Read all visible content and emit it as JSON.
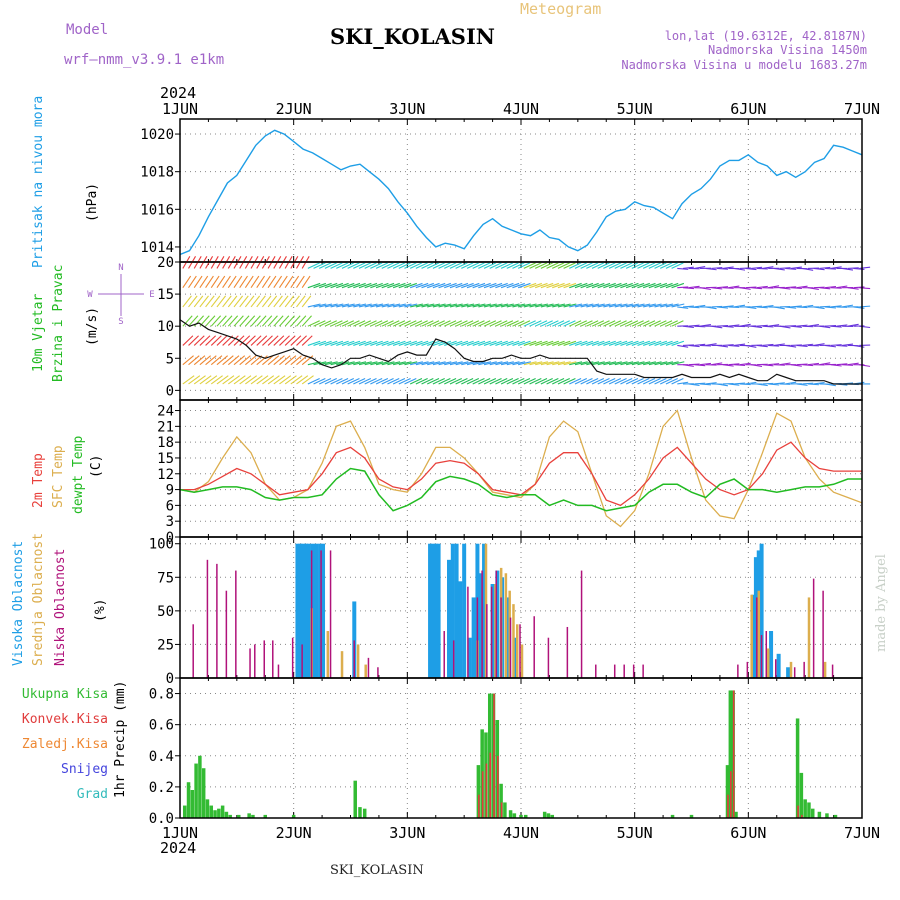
{
  "header": {
    "model_label": "Model",
    "model_name": "wrf–nmm_v3.9.1 e1km",
    "station": "SKI_KOLASIN",
    "product": "Meteogram",
    "lonlat": "lon,lat (19.6312E, 42.8187N)",
    "elevation": "Nadmorska Visina 1450m",
    "elevation_model": "Nadmorska Visina u modelu 1683.27m"
  },
  "footer": {
    "station": "SKI_KOLASIN"
  },
  "watermark": "made by Angel",
  "colors": {
    "pressure": "#1e9ee6",
    "temp2m": "#e8413c",
    "sfc": "#dcae4e",
    "dewpt": "#22bb22",
    "high_cloud": "#1e9ee6",
    "mid_cloud": "#dcae4e",
    "low_cloud": "#b0127a",
    "total_precip": "#33bb33",
    "conv_precip": "#e03c3c",
    "frozen_precip": "#ee8833",
    "snow": "#4444dd",
    "hail": "#33bbbb"
  },
  "chart_data": [
    {
      "id": "pressure",
      "type": "line",
      "x_axis": {
        "year": "2024",
        "ticks": [
          "1JUN",
          "2JUN",
          "3JUN",
          "4JUN",
          "5JUN",
          "6JUN",
          "7JUN"
        ],
        "range_hours": [
          0,
          144
        ]
      },
      "ylabel": [
        "Pritisak na nivou mora",
        "(hPa)"
      ],
      "ylim": [
        1013.2,
        1020.8
      ],
      "yticks": [
        1014,
        1016,
        1018,
        1020
      ],
      "series": [
        {
          "name": "Pritisak na nivou mora",
          "x": [
            0,
            2,
            4,
            6,
            8,
            10,
            12,
            14,
            16,
            18,
            20,
            22,
            24,
            26,
            28,
            30,
            32,
            34,
            36,
            38,
            40,
            42,
            44,
            46,
            48,
            50,
            52,
            54,
            56,
            58,
            60,
            62,
            64,
            66,
            68,
            70,
            72,
            74,
            76,
            78,
            80,
            82,
            84,
            86,
            88,
            90,
            92,
            94,
            96,
            98,
            100,
            102,
            104,
            106,
            108,
            110,
            112,
            114,
            116,
            118,
            120,
            122,
            124,
            126,
            128,
            130,
            132,
            134,
            136,
            138,
            140,
            142,
            144
          ],
          "y": [
            1013.6,
            1013.8,
            1014.6,
            1015.6,
            1016.5,
            1017.4,
            1017.8,
            1018.6,
            1019.4,
            1019.9,
            1020.2,
            1020.0,
            1019.6,
            1019.2,
            1019.0,
            1018.7,
            1018.4,
            1018.1,
            1018.3,
            1018.4,
            1018.0,
            1017.6,
            1017.1,
            1016.4,
            1015.8,
            1015.1,
            1014.5,
            1014.0,
            1014.2,
            1014.1,
            1013.9,
            1014.6,
            1015.2,
            1015.5,
            1015.1,
            1014.9,
            1014.7,
            1014.6,
            1014.9,
            1014.5,
            1014.4,
            1014.0,
            1013.8,
            1014.1,
            1014.8,
            1015.6,
            1015.9,
            1016.0,
            1016.4,
            1016.2,
            1016.1,
            1015.8,
            1015.5,
            1016.3,
            1016.8,
            1017.1,
            1017.6,
            1018.3,
            1018.6,
            1018.6,
            1018.9,
            1018.5,
            1018.3,
            1017.8,
            1018.0,
            1017.7,
            1018.0,
            1018.5,
            1018.7,
            1019.4,
            1019.3,
            1019.1,
            1018.9
          ]
        }
      ]
    },
    {
      "id": "wind",
      "type": "line",
      "ylabel": [
        "10m Vjetar",
        "Brzina i Pravac",
        "(m/s)"
      ],
      "compass_label": [
        "N",
        "W",
        "E",
        "S"
      ],
      "ylim": [
        -1.5,
        20
      ],
      "yticks": [
        0,
        5,
        10,
        15,
        20
      ],
      "series": [
        {
          "name": "Brzina",
          "x": [
            0,
            2,
            4,
            6,
            8,
            10,
            12,
            14,
            16,
            18,
            20,
            22,
            24,
            26,
            28,
            30,
            32,
            34,
            36,
            38,
            40,
            42,
            44,
            46,
            48,
            50,
            52,
            54,
            56,
            58,
            60,
            62,
            64,
            66,
            68,
            70,
            72,
            74,
            76,
            78,
            80,
            82,
            84,
            86,
            88,
            90,
            92,
            94,
            96,
            98,
            100,
            102,
            104,
            106,
            108,
            110,
            112,
            114,
            116,
            118,
            120,
            122,
            124,
            126,
            128,
            130,
            132,
            134,
            136,
            138,
            140,
            142,
            144
          ],
          "y": [
            11,
            10,
            10.5,
            9.5,
            9,
            8.5,
            8,
            7,
            5.5,
            5,
            5.5,
            6,
            6.5,
            5.5,
            5,
            4,
            3.5,
            4,
            5,
            5,
            5.5,
            5,
            4.5,
            5.5,
            6,
            5.5,
            5.5,
            8,
            7.5,
            6.5,
            5,
            4.5,
            4.5,
            5,
            5,
            5.5,
            5,
            5,
            5.5,
            5,
            5,
            5,
            5,
            5,
            3,
            2.5,
            2.5,
            2.5,
            2.5,
            2,
            2,
            2,
            2,
            2.5,
            2,
            2,
            2,
            2.5,
            2,
            2.5,
            2,
            1.5,
            1.5,
            2.5,
            2,
            1.5,
            1.5,
            1.5,
            1.5,
            1,
            1,
            1,
            1
          ]
        }
      ]
    },
    {
      "id": "temperature",
      "type": "line",
      "ylabel": [
        "2m Temp",
        "SFC Temp",
        "dewpt Temp",
        "(C)"
      ],
      "ylim": [
        0,
        26
      ],
      "yticks": [
        0,
        3,
        6,
        9,
        12,
        15,
        18,
        21,
        24
      ],
      "series": [
        {
          "name": "2m Temp",
          "x": [
            0,
            3,
            6,
            9,
            12,
            15,
            18,
            21,
            24,
            27,
            30,
            33,
            36,
            39,
            42,
            45,
            48,
            51,
            54,
            57,
            60,
            63,
            66,
            69,
            72,
            75,
            78,
            81,
            84,
            87,
            90,
            93,
            96,
            99,
            102,
            105,
            108,
            111,
            114,
            117,
            120,
            123,
            126,
            129,
            132,
            135,
            138,
            141,
            144
          ],
          "y": [
            9,
            9,
            10,
            11.5,
            13,
            12,
            10,
            8,
            8.5,
            9,
            12,
            16,
            17,
            15,
            11,
            9.5,
            9,
            11,
            14,
            14.5,
            14,
            12,
            9,
            8.5,
            8,
            10,
            14,
            16,
            16,
            12,
            7,
            6,
            8,
            11,
            15,
            17,
            14,
            11,
            9,
            8,
            9,
            12,
            16.5,
            18,
            15,
            13,
            12.5,
            12.5,
            12.5
          ]
        },
        {
          "name": "SFC Temp",
          "x": [
            0,
            3,
            6,
            9,
            12,
            15,
            18,
            21,
            24,
            27,
            30,
            33,
            36,
            39,
            42,
            45,
            48,
            51,
            54,
            57,
            60,
            63,
            66,
            69,
            72,
            75,
            78,
            81,
            84,
            87,
            90,
            93,
            96,
            99,
            102,
            105,
            108,
            111,
            114,
            117,
            120,
            123,
            126,
            129,
            132,
            135,
            138,
            141,
            144
          ],
          "y": [
            9,
            8.5,
            10.5,
            15,
            19,
            16,
            10,
            7,
            7.5,
            9,
            14,
            21,
            22,
            17,
            10,
            9,
            8.5,
            12,
            17,
            17,
            15,
            12,
            8.5,
            8,
            7.5,
            10,
            19,
            22,
            20,
            12,
            4,
            2,
            5,
            12,
            21,
            24,
            15,
            7,
            4,
            3.5,
            9,
            16,
            23.5,
            22,
            15,
            11,
            8.5,
            7.5,
            6.5
          ]
        },
        {
          "name": "dewpt Temp",
          "x": [
            0,
            3,
            6,
            9,
            12,
            15,
            18,
            21,
            24,
            27,
            30,
            33,
            36,
            39,
            42,
            45,
            48,
            51,
            54,
            57,
            60,
            63,
            66,
            69,
            72,
            75,
            78,
            81,
            84,
            87,
            90,
            93,
            96,
            99,
            102,
            105,
            108,
            111,
            114,
            117,
            120,
            123,
            126,
            129,
            132,
            135,
            138,
            141,
            144
          ],
          "y": [
            9,
            8.5,
            9,
            9.5,
            9.5,
            9,
            7.5,
            7,
            7.5,
            7.5,
            8,
            11,
            13,
            12.5,
            8,
            5,
            6,
            7.5,
            10.5,
            11.5,
            11,
            10,
            8,
            7.5,
            8,
            8,
            6,
            7,
            6,
            6,
            5,
            5.5,
            6,
            8.5,
            10,
            10,
            8.5,
            7.5,
            10,
            11,
            9,
            9,
            8.5,
            9,
            9.5,
            9.5,
            10,
            11,
            11
          ]
        }
      ]
    },
    {
      "id": "clouds",
      "type": "bar",
      "ylabel": [
        "Visoka Oblacnost",
        "Srednja Oblacnost",
        "Niska Oblacnost",
        "(%)"
      ],
      "ylim": [
        0,
        105
      ],
      "yticks": [
        0,
        25,
        50,
        75,
        100
      ],
      "series": [
        {
          "name": "Visoka Oblacnost",
          "x": [
            24.8,
            25.4,
            26,
            26.6,
            27.2,
            28,
            28.8,
            29.6,
            30.2,
            36.8,
            52.8,
            53.4,
            54,
            54.6,
            56.8,
            57.6,
            58.4,
            59.2,
            60,
            61.2,
            62,
            62.8,
            63.4,
            64.2,
            66,
            67,
            68,
            69,
            70.8,
            121,
            121.6,
            122.2,
            122.8,
            124.8,
            126.4,
            128.4
          ],
          "y": [
            100,
            100,
            100,
            100,
            100,
            100,
            100,
            100,
            100,
            57,
            100,
            100,
            100,
            100,
            88,
            100,
            100,
            72,
            100,
            30,
            60,
            100,
            78,
            100,
            70,
            80,
            75,
            60,
            30,
            62,
            90,
            95,
            100,
            35,
            18,
            8
          ]
        },
        {
          "name": "Srednja Oblacnost",
          "x": [
            27.6,
            31,
            34,
            37.4,
            39,
            62.6,
            64.4,
            66.4,
            67.6,
            68.6,
            69.4,
            70.2,
            71,
            72,
            120.5,
            122,
            124,
            128.8,
            132.6,
            136
          ],
          "y": [
            52,
            35,
            20,
            25,
            10,
            28,
            100,
            70,
            82,
            78,
            65,
            55,
            40,
            25,
            62,
            65,
            22,
            12,
            60,
            12
          ]
        },
        {
          "name": "Niska Oblacnost",
          "x": [
            3,
            6,
            8,
            10,
            12,
            15,
            16,
            18,
            19.8,
            21,
            24,
            26,
            28,
            30,
            32,
            37,
            40,
            42,
            56,
            58,
            61,
            63,
            64,
            65,
            66,
            67,
            68,
            70,
            72,
            75,
            78,
            82,
            85,
            88,
            92,
            94,
            96,
            98,
            118,
            120,
            122,
            123,
            124,
            126,
            130,
            132,
            134,
            136,
            138
          ],
          "y": [
            40,
            88,
            85,
            65,
            80,
            22,
            25,
            28,
            28,
            10,
            30,
            25,
            95,
            95,
            95,
            28,
            15,
            8,
            35,
            28,
            68,
            60,
            80,
            55,
            68,
            80,
            60,
            45,
            40,
            46,
            30,
            38,
            80,
            10,
            10,
            10,
            10,
            10,
            10,
            12,
            60,
            32,
            35,
            14,
            8,
            12,
            74,
            65,
            10
          ]
        }
      ]
    },
    {
      "id": "precip",
      "type": "bar",
      "x_axis": {
        "year": "2024",
        "ticks": [
          "1JUN",
          "2JUN",
          "3JUN",
          "4JUN",
          "5JUN",
          "6JUN",
          "7JUN"
        ],
        "range_hours": [
          0,
          144
        ]
      },
      "ylabel": [
        "1hr Precip (mm)"
      ],
      "legend": [
        "Ukupna Kisa",
        "Konvek.Kisa",
        "Zaledj.Kisa",
        "Snijeg",
        "Grad"
      ],
      "ylim": [
        0,
        0.9
      ],
      "yticks": [
        0,
        0.2,
        0.4,
        0.6,
        0.8
      ],
      "series": [
        {
          "name": "Ukupna Kisa",
          "x": [
            1,
            1.8,
            2.6,
            3.4,
            4.2,
            5,
            5.8,
            6.6,
            7.4,
            8.2,
            9,
            9.8,
            10.6,
            12.4,
            14.6,
            15.4,
            18,
            24,
            37,
            38,
            39,
            63,
            63.8,
            64.6,
            65.4,
            66.2,
            67,
            67.8,
            68.6,
            69.8,
            70.6,
            72,
            73,
            77,
            77.8,
            78.6,
            104,
            108,
            115.6,
            116.2,
            116.8,
            117.4,
            130.4,
            131.2,
            132,
            132.8,
            133.6,
            135,
            136.6,
            138.4
          ],
          "y": [
            0.08,
            0.23,
            0.18,
            0.35,
            0.4,
            0.32,
            0.12,
            0.08,
            0.05,
            0.06,
            0.08,
            0.04,
            0.02,
            0.02,
            0.03,
            0.02,
            0.02,
            0.02,
            0.24,
            0.07,
            0.06,
            0.34,
            0.57,
            0.55,
            0.8,
            0.8,
            0.63,
            0.22,
            0.1,
            0.05,
            0.03,
            0.02,
            0.02,
            0.04,
            0.03,
            0.02,
            0.02,
            0.02,
            0.34,
            0.82,
            0.82,
            0.04,
            0.64,
            0.29,
            0.12,
            0.1,
            0.06,
            0.04,
            0.03,
            0.02
          ]
        },
        {
          "name": "Konvek.Kisa",
          "x": [
            63,
            63.8,
            64.6,
            65.4,
            66.2,
            67,
            67.8,
            115.6,
            116.2,
            116.8,
            130.4,
            131.2
          ],
          "y": [
            0.15,
            0.3,
            0.35,
            0.42,
            0.8,
            0.4,
            0.1,
            0.15,
            0.3,
            0.82,
            0.08,
            0.02
          ]
        }
      ]
    }
  ]
}
